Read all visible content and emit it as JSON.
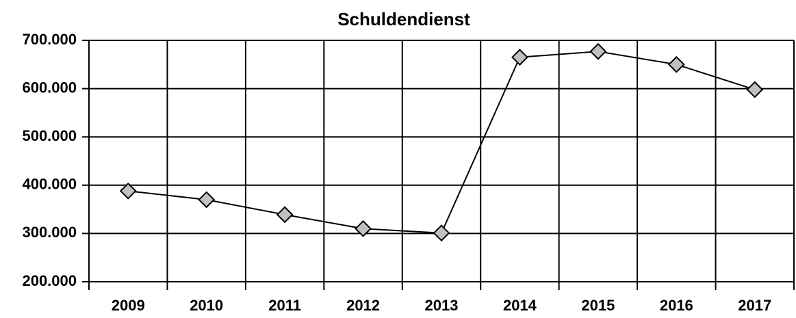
{
  "chart_data": {
    "type": "line",
    "title": "Schuldendienst",
    "categories": [
      "2009",
      "2010",
      "2011",
      "2012",
      "2013",
      "2014",
      "2015",
      "2016",
      "2017"
    ],
    "series": [
      {
        "name": "Schuldendienst",
        "color": "#000000",
        "marker_color": "#c0c0c0",
        "values": [
          388000,
          370000,
          339000,
          310000,
          301000,
          665000,
          677000,
          650000,
          598000
        ]
      }
    ],
    "ylim": [
      200000,
      700000
    ],
    "yticks": [
      {
        "value": 200000,
        "label": "200.000"
      },
      {
        "value": 300000,
        "label": "300.000"
      },
      {
        "value": 400000,
        "label": "400.000"
      },
      {
        "value": 500000,
        "label": "500.000"
      },
      {
        "value": 600000,
        "label": "600.000"
      },
      {
        "value": 700000,
        "label": "700.000"
      }
    ],
    "grid": true
  }
}
